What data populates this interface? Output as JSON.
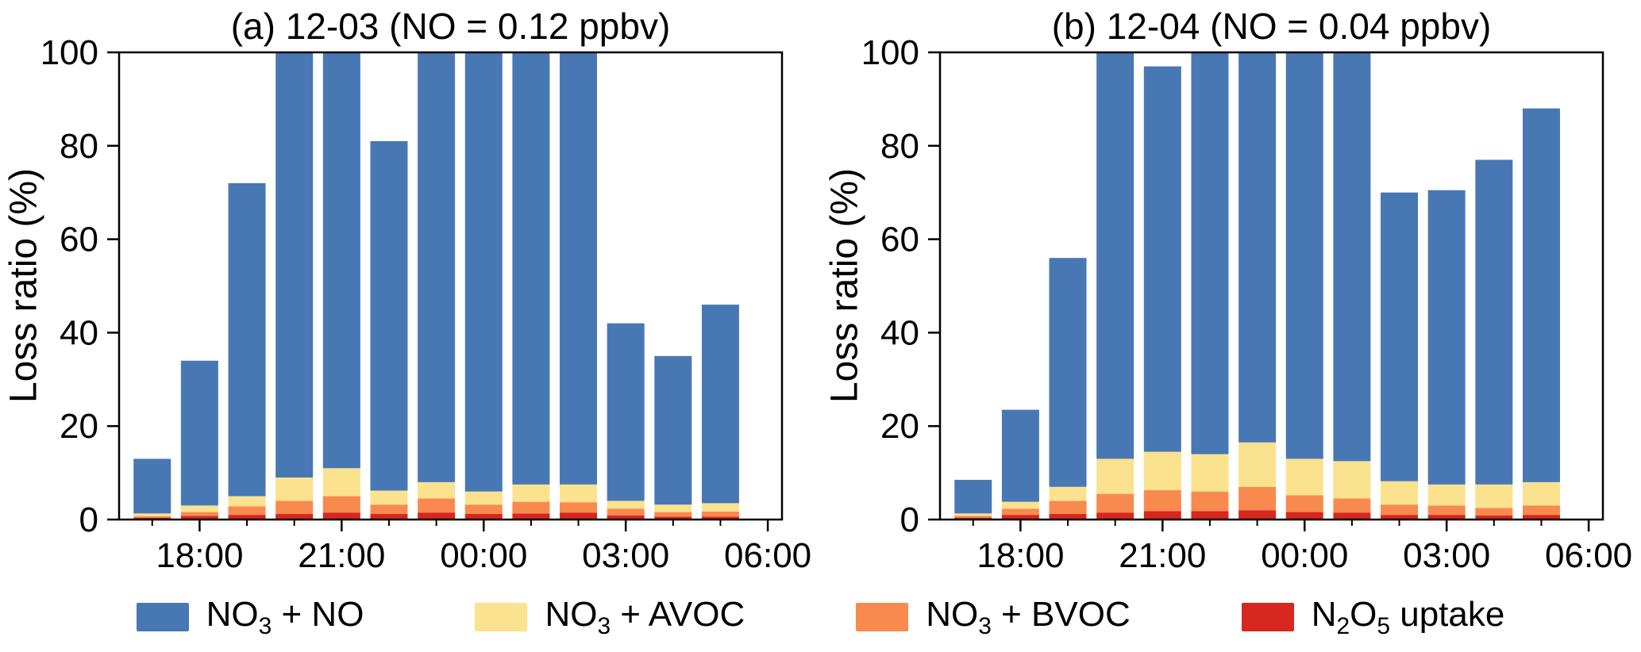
{
  "chart_data": {
    "type": "bar",
    "stacked": true,
    "grid": false,
    "legend_position": "bottom",
    "x_hours": [
      17,
      18,
      19,
      20,
      21,
      22,
      23,
      24,
      25,
      26,
      27,
      28,
      29
    ],
    "x_domain_hours": [
      16.3,
      30.3
    ],
    "xtick_hours": [
      18,
      21,
      24,
      27,
      30
    ],
    "xtick_labels": [
      "18:00",
      "21:00",
      "00:00",
      "03:00",
      "06:00"
    ],
    "ylim": [
      0,
      100
    ],
    "yticks": [
      0,
      20,
      40,
      60,
      80,
      100
    ],
    "ytick_labels": [
      "0",
      "20",
      "40",
      "60",
      "80",
      "100"
    ],
    "series_meta": [
      {
        "key": "n2o5",
        "label": "N₂O₅ uptake",
        "color": "#D8271E",
        "label_parts": [
          {
            "t": "N"
          },
          {
            "t": "2",
            "sub": true
          },
          {
            "t": "O"
          },
          {
            "t": "5",
            "sub": true
          },
          {
            "t": " uptake"
          }
        ]
      },
      {
        "key": "bvoc",
        "label": "NO₃ + BVOC",
        "color": "#F88A50",
        "label_parts": [
          {
            "t": "NO"
          },
          {
            "t": "3",
            "sub": true
          },
          {
            "t": " + BVOC"
          }
        ]
      },
      {
        "key": "avoc",
        "label": "NO₃ + AVOC",
        "color": "#FBE28F",
        "label_parts": [
          {
            "t": "NO"
          },
          {
            "t": "3",
            "sub": true
          },
          {
            "t": " + AVOC"
          }
        ]
      },
      {
        "key": "no",
        "label": "NO₃ + NO",
        "color": "#4878B4",
        "label_parts": [
          {
            "t": "NO"
          },
          {
            "t": "3",
            "sub": true
          },
          {
            "t": " + NO"
          }
        ]
      }
    ],
    "legend_display_order": [
      3,
      2,
      1,
      0
    ],
    "panels": [
      {
        "id": "a",
        "title": "(a) 12-03 (NO = 0.12 ppbv)",
        "ylabel": "Loss ratio (%)",
        "series": {
          "n2o5": [
            0.4,
            0.8,
            1.0,
            1.2,
            1.5,
            1.2,
            1.5,
            1.2,
            1.3,
            1.5,
            0.9,
            0.6,
            0.6
          ],
          "bvoc": [
            0.3,
            0.8,
            1.8,
            2.8,
            3.5,
            2.0,
            3.0,
            2.0,
            2.5,
            2.2,
            1.4,
            1.0,
            1.1
          ],
          "avoc": [
            0.6,
            1.4,
            2.2,
            5.0,
            6.0,
            3.0,
            3.5,
            2.8,
            3.7,
            3.8,
            1.7,
            1.6,
            1.8
          ],
          "no": [
            11.7,
            31.0,
            67.0,
            91.0,
            89.0,
            74.8,
            92.0,
            94.0,
            92.5,
            92.5,
            38.0,
            31.8,
            42.5
          ]
        },
        "totals": [
          13,
          34,
          72,
          100,
          100,
          81,
          100,
          100,
          100,
          100,
          42,
          35,
          46
        ]
      },
      {
        "id": "b",
        "title": "(b) 12-04 (NO = 0.04 ppbv)",
        "ylabel": "Loss ratio (%)",
        "series": {
          "n2o5": [
            0.4,
            1.0,
            1.2,
            1.5,
            1.8,
            1.8,
            2.0,
            1.6,
            1.5,
            1.0,
            1.0,
            0.9,
            1.0
          ],
          "bvoc": [
            0.4,
            1.3,
            2.8,
            4.0,
            4.5,
            4.2,
            5.0,
            3.6,
            3.0,
            2.2,
            2.0,
            1.6,
            2.0
          ],
          "avoc": [
            0.5,
            1.5,
            3.0,
            7.5,
            8.2,
            8.0,
            9.5,
            7.8,
            8.0,
            5.0,
            4.5,
            5.0,
            5.0
          ],
          "no": [
            7.2,
            19.7,
            49.0,
            87.0,
            82.5,
            86.0,
            83.5,
            87.0,
            87.5,
            61.8,
            63.0,
            69.5,
            80.0
          ]
        },
        "totals": [
          8.5,
          23.5,
          56,
          100,
          97,
          100,
          100,
          100,
          100,
          70,
          70.5,
          77,
          88
        ]
      }
    ]
  }
}
